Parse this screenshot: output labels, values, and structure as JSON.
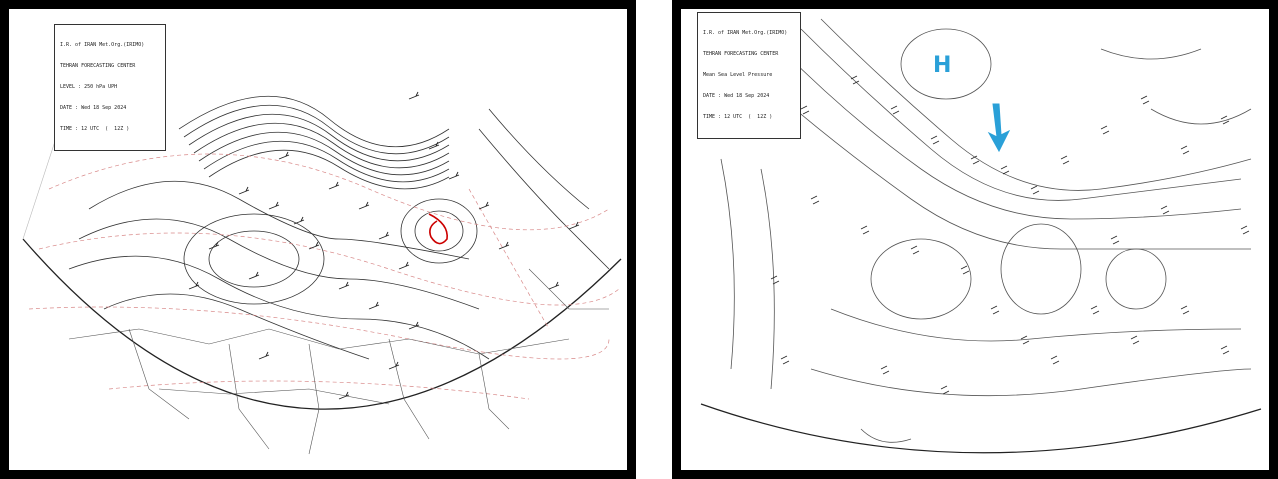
{
  "left_map": {
    "legend": {
      "org": "I.R. of IRAN Met.Org.(IRIMO)",
      "center": "TEHRAN FORECASTING CENTER",
      "level": "LEVEL : 250 hPa UPH",
      "date": "DATE : Wed 18 Sep 2024",
      "time": "TIME : 12 UTC  (  12Z )"
    },
    "colors": {
      "contour": "#333333",
      "isotherm": "#d88888",
      "highlight": "#cc0000"
    }
  },
  "right_map": {
    "legend": {
      "org": "I.R. of IRAN Met.Org.(IRIMO)",
      "center": "TEHRAN FORECASTING CENTER",
      "level": "Mean Sea Level Pressure",
      "date": "DATE : Wed 18 Sep 2024",
      "time": "TIME : 12 UTC  (  12Z )"
    },
    "high_label": "H",
    "colors": {
      "contour": "#555555",
      "annotation": "#2aa0d8"
    }
  }
}
